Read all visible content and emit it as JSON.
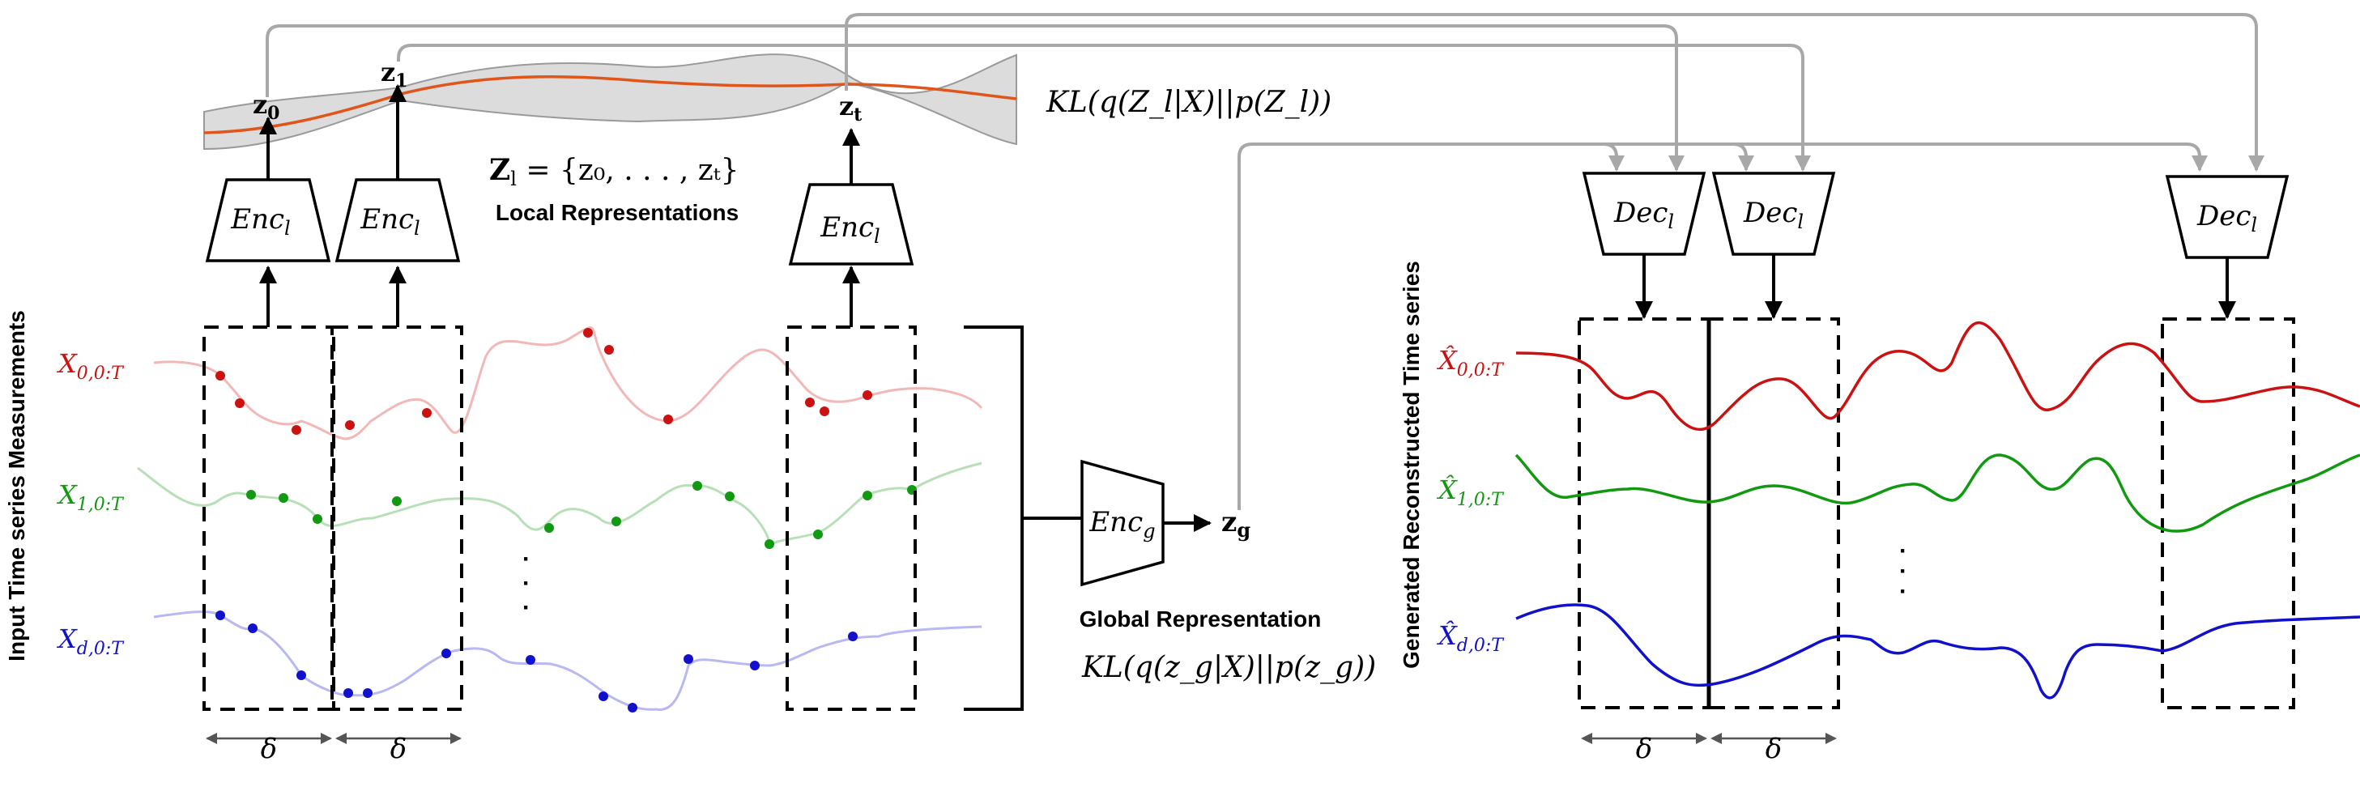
{
  "left_panel": {
    "y_axis_label": "Input Time series Measurements",
    "series_labels": [
      {
        "base": "X",
        "sub": "0,0:T",
        "color": "#cc1111"
      },
      {
        "base": "X",
        "sub": "1,0:T",
        "color": "#119911"
      },
      {
        "base": "X",
        "sub": "d,0:T",
        "color": "#1111cc"
      }
    ],
    "delta": "δ",
    "ellipsis": "·\n·\n·"
  },
  "local": {
    "encoder_base": "Enc",
    "encoder_sub": "l",
    "z0_base": "z",
    "z0_sub": "0",
    "z1_base": "z",
    "z1_sub": "1",
    "zt_base": "z",
    "zt_sub": "t",
    "set_expr_lhs": "Z",
    "set_expr_lhs_sub": "l",
    "set_expr_rhs": " = {z₀, . . . , zₜ}",
    "title": "Local Representations",
    "kl": "KL(q(Z_l|X)||p(Z_l))"
  },
  "global": {
    "encoder_base": "Enc",
    "encoder_sub": "g",
    "zg_base": "z",
    "zg_sub": "g",
    "title": "Global Representation",
    "kl": "KL(q(z_g|X)||p(z_g))"
  },
  "right_panel": {
    "y_axis_label": "Generated Reconstructed Time series",
    "decoder_base": "Dec",
    "decoder_sub": "l",
    "series_labels": [
      {
        "base": "X̂",
        "sub": "0,0:T",
        "color": "#cc1111"
      },
      {
        "base": "X̂",
        "sub": "1,0:T",
        "color": "#119911"
      },
      {
        "base": "X̂",
        "sub": "d,0:T",
        "color": "#1111cc"
      }
    ],
    "delta": "δ",
    "ellipsis": "·\n·\n·"
  },
  "colors": {
    "red": "#cc1111",
    "green": "#119911",
    "blue": "#1111cc",
    "red_faded": "#f2b8b8",
    "green_faded": "#b8e0b8",
    "blue_faded": "#b8b8f2",
    "latent_curve": "#e0561a",
    "latent_band": "#dcdcdc",
    "skip_arrows": "#a8a8a8"
  }
}
